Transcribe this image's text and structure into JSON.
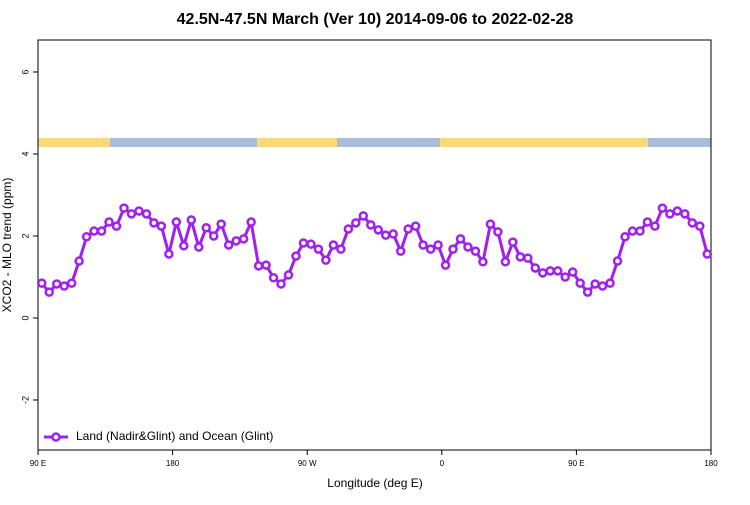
{
  "chart_data": {
    "type": "line",
    "title": "42.5N-47.5N March (Ver 10)   2014-09-06 to 2022-02-28",
    "xlabel": "Longitude (deg E)",
    "ylabel": "XCO2 - MLO trend (ppm)",
    "x": [
      92.5,
      97.5,
      102.5,
      107.5,
      112.5,
      117.5,
      122.5,
      127.5,
      132.5,
      137.5,
      142.5,
      147.5,
      152.5,
      157.5,
      162.5,
      167.5,
      172.5,
      177.5,
      182.5,
      187.5,
      192.5,
      197.5,
      202.5,
      207.5,
      212.5,
      217.5,
      222.5,
      227.5,
      232.5,
      237.5,
      242.5,
      247.5,
      252.5,
      257.5,
      262.5,
      267.5,
      272.5,
      277.5,
      282.5,
      287.5,
      292.5,
      297.5,
      302.5,
      307.5,
      312.5,
      317.5,
      322.5,
      327.5,
      332.5,
      337.5,
      342.5,
      347.5,
      352.5,
      357.5,
      362.5,
      367.5,
      372.5,
      377.5,
      382.5,
      387.5,
      392.5,
      397.5,
      402.5,
      407.5,
      412.5,
      417.5,
      422.5,
      427.5,
      432.5,
      437.5,
      442.5,
      447.5,
      452.5,
      457.5,
      462.5,
      467.5,
      472.5,
      477.5,
      482.5,
      487.5,
      492.5,
      497.5,
      502.5,
      507.5,
      512.5,
      517.5,
      522.5,
      527.5,
      532.5,
      537.5
    ],
    "series": [
      {
        "name": "Land (Nadir&Glint) and Ocean (Glint)",
        "color": "#a020f0",
        "values": [
          0.85,
          0.63,
          0.83,
          0.78,
          0.85,
          1.39,
          1.98,
          2.12,
          2.12,
          2.34,
          2.24,
          2.68,
          2.54,
          2.61,
          2.54,
          2.32,
          2.24,
          1.56,
          2.34,
          1.76,
          2.39,
          1.73,
          2.2,
          2.0,
          2.29,
          1.78,
          1.88,
          1.93,
          2.34,
          1.27,
          1.29,
          0.98,
          0.83,
          1.05,
          1.51,
          1.83,
          1.8,
          1.68,
          1.41,
          1.78,
          1.68,
          2.17,
          2.32,
          2.49,
          2.27,
          2.15,
          2.02,
          2.05,
          1.63,
          2.17,
          2.24,
          1.78,
          1.68,
          1.78,
          1.29,
          1.68,
          1.93,
          1.73,
          1.63,
          1.37,
          2.29,
          2.1,
          1.37,
          1.85,
          1.49,
          1.46,
          1.22,
          1.1,
          1.15,
          1.15,
          1.0,
          1.12,
          0.85,
          0.63,
          0.83,
          0.78,
          0.85,
          1.39,
          1.98,
          2.12,
          2.12,
          2.34,
          2.24,
          2.68,
          2.54,
          2.61,
          2.54,
          2.32,
          2.24,
          1.56
        ]
      }
    ],
    "xlim": [
      90,
      540
    ],
    "xticks": [
      {
        "value": 90,
        "label": "90 E"
      },
      180,
      {
        "value": 270,
        "label": "90 W"
      },
      {
        "value": 360,
        "label": "0"
      },
      {
        "value": 450,
        "label": "90 E"
      },
      {
        "value": 540,
        "label": "180"
      }
    ],
    "ylim": [
      -3.22,
      6.78
    ],
    "yticks": [
      -2,
      0,
      2,
      4,
      6
    ],
    "legend": "lower left"
  }
}
